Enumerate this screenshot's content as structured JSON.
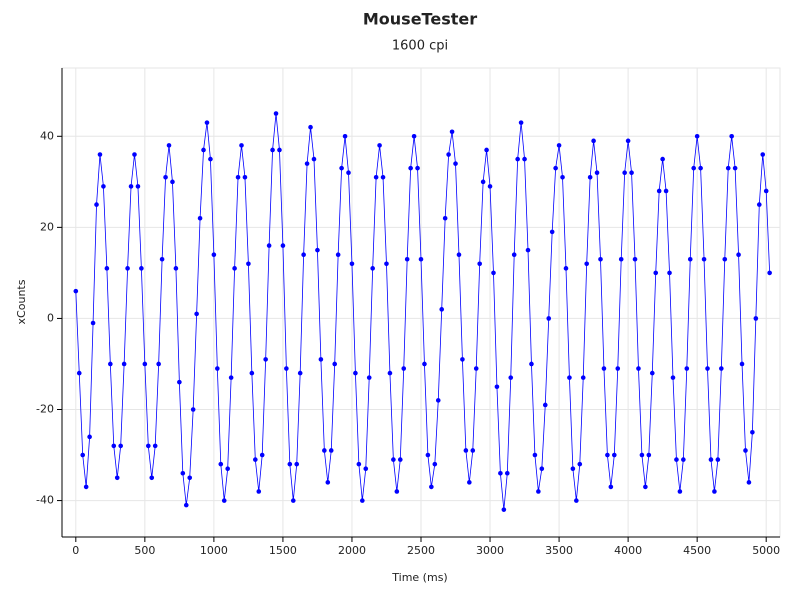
{
  "chart_data": {
    "type": "scatter",
    "title": "MouseTester",
    "subtitle": "1600 cpi",
    "x_label": "Time (ms)",
    "y_label": "xCounts",
    "x": [
      0,
      25,
      50,
      75,
      100,
      125,
      150,
      175,
      200,
      225,
      250,
      275,
      300,
      325,
      350,
      375,
      400,
      425,
      450,
      475,
      500,
      525,
      550,
      575,
      600,
      625,
      650,
      675,
      700,
      725,
      750,
      775,
      800,
      825,
      850,
      875,
      900,
      925,
      950,
      975,
      1000,
      1025,
      1050,
      1075,
      1100,
      1125,
      1150,
      1175,
      1200,
      1225,
      1250,
      1275,
      1300,
      1325,
      1350,
      1375,
      1400,
      1425,
      1450,
      1475,
      1500,
      1525,
      1550,
      1575,
      1600,
      1625,
      1650,
      1675,
      1700,
      1725,
      1750,
      1775,
      1800,
      1825,
      1850,
      1875,
      1900,
      1925,
      1950,
      1975,
      2000,
      2025,
      2050,
      2075,
      2100,
      2125,
      2150,
      2175,
      2200,
      2225,
      2250,
      2275,
      2300,
      2325,
      2350,
      2375,
      2400,
      2425,
      2450,
      2475,
      2500,
      2525,
      2550,
      2575,
      2600,
      2625,
      2650,
      2675,
      2700,
      2725,
      2750,
      2775,
      2800,
      2825,
      2850,
      2875,
      2900,
      2925,
      2950,
      2975,
      3000,
      3025,
      3050,
      3075,
      3100,
      3125,
      3150,
      3175,
      3200,
      3225,
      3250,
      3275,
      3300,
      3325,
      3350,
      3375,
      3400,
      3425,
      3450,
      3475,
      3500,
      3525,
      3550,
      3575,
      3600,
      3625,
      3650,
      3675,
      3700,
      3725,
      3750,
      3775,
      3800,
      3825,
      3850,
      3875,
      3900,
      3925,
      3950,
      3975,
      4000,
      4025,
      4050,
      4075,
      4100,
      4125,
      4150,
      4175,
      4200,
      4225,
      4250,
      4275,
      4300,
      4325,
      4350,
      4375,
      4400,
      4425,
      4450,
      4475,
      4500,
      4525,
      4550,
      4575,
      4600,
      4625,
      4650,
      4675,
      4700,
      4725,
      4750,
      4775,
      4800,
      4825,
      4850,
      4875,
      4900,
      4925,
      4950,
      4975,
      5000,
      5025
    ],
    "series": [
      {
        "name": "xCounts",
        "color": "#0000ff",
        "values": [
          6,
          -12,
          -30,
          -37,
          -26,
          -1,
          25,
          36,
          29,
          11,
          -10,
          -28,
          -35,
          -28,
          -10,
          11,
          29,
          36,
          29,
          11,
          -10,
          -28,
          -35,
          -28,
          -10,
          13,
          31,
          38,
          30,
          11,
          -14,
          -34,
          -41,
          -35,
          -20,
          1,
          22,
          37,
          43,
          35,
          14,
          -11,
          -32,
          -40,
          -33,
          -13,
          11,
          31,
          38,
          31,
          12,
          -12,
          -31,
          -38,
          -30,
          -9,
          16,
          37,
          45,
          37,
          16,
          -11,
          -32,
          -40,
          -32,
          -12,
          14,
          34,
          42,
          35,
          15,
          -9,
          -29,
          -36,
          -29,
          -10,
          14,
          33,
          40,
          32,
          12,
          -12,
          -32,
          -40,
          -33,
          -13,
          11,
          31,
          38,
          31,
          12,
          -12,
          -31,
          -38,
          -31,
          -11,
          13,
          33,
          40,
          33,
          13,
          -10,
          -30,
          -37,
          -32,
          -18,
          2,
          22,
          36,
          41,
          34,
          14,
          -9,
          -29,
          -36,
          -29,
          -11,
          12,
          30,
          37,
          29,
          10,
          -15,
          -34,
          -42,
          -34,
          -13,
          14,
          35,
          43,
          35,
          15,
          -10,
          -30,
          -38,
          -33,
          -19,
          0,
          19,
          33,
          38,
          31,
          11,
          -13,
          -33,
          -40,
          -32,
          -13,
          12,
          31,
          39,
          32,
          13,
          -11,
          -30,
          -37,
          -30,
          -11,
          13,
          32,
          39,
          32,
          13,
          -11,
          -30,
          -37,
          -30,
          -12,
          10,
          28,
          35,
          28,
          10,
          -13,
          -31,
          -38,
          -31,
          -11,
          13,
          33,
          40,
          33,
          13,
          -11,
          -31,
          -38,
          -31,
          -11,
          13,
          33,
          40,
          33,
          14,
          -10,
          -29,
          -36,
          -25,
          0,
          25,
          36,
          28,
          10
        ]
      }
    ],
    "xlim": [
      -100,
      5100
    ],
    "ylim": [
      -48,
      55
    ],
    "xticks": [
      0,
      500,
      1000,
      1500,
      2000,
      2500,
      3000,
      3500,
      4000,
      4500,
      5000
    ],
    "yticks": [
      -40,
      -20,
      0,
      20,
      40
    ],
    "grid": true
  }
}
